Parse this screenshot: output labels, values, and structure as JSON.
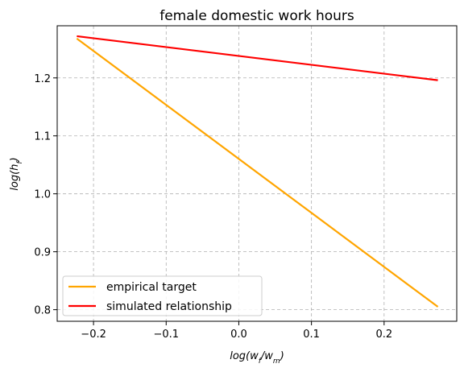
{
  "chart_data": {
    "type": "line",
    "title": "female domestic work hours",
    "xlabel": {
      "base": "log(w",
      "sub1": "f",
      "mid": "/w",
      "sub2": "m",
      "end": ")"
    },
    "ylabel": {
      "base": "log(h",
      "sub1": "f",
      "end": ")"
    },
    "xlim": [
      -0.25,
      0.3
    ],
    "ylim": [
      0.78,
      1.29
    ],
    "xticks": [
      -0.2,
      -0.1,
      0.0,
      0.1,
      0.2
    ],
    "xtick_labels": [
      "−0.2",
      "−0.1",
      "0.0",
      "0.1",
      "0.2"
    ],
    "yticks": [
      0.8,
      0.9,
      1.0,
      1.1,
      1.2
    ],
    "ytick_labels": [
      "0.8",
      "0.9",
      "1.0",
      "1.1",
      "1.2"
    ],
    "grid": true,
    "legend_position": "lower-left",
    "series": [
      {
        "name": "empirical target",
        "color": "#FFA500",
        "x": [
          -0.223,
          0.274
        ],
        "y": [
          1.268,
          0.805
        ]
      },
      {
        "name": "simulated relationship",
        "color": "#FF0000",
        "x": [
          -0.223,
          0.274
        ],
        "y": [
          1.272,
          1.196
        ]
      }
    ]
  }
}
